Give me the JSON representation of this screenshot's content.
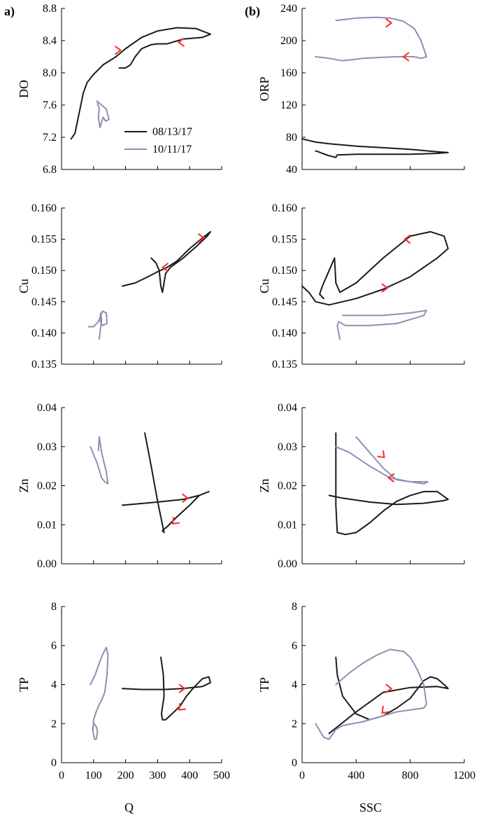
{
  "panel_labels": {
    "left": "a)",
    "right": "(b)"
  },
  "series_colors": {
    "08/13/17": "#1a1a1a",
    "10/11/17": "#8f8fb3",
    "arrow": "#ff2a2a"
  },
  "legend": [
    {
      "name": "08/13/17",
      "color": "#1a1a1a"
    },
    {
      "name": "10/11/17",
      "color": "#8f8fb3"
    }
  ],
  "chart_data": [
    {
      "type": "line",
      "panel": "a-DO",
      "xlabel": "",
      "ylabel": "DO",
      "xlim": [
        0,
        500
      ],
      "ylim": [
        6.8,
        8.8
      ],
      "xticks": [],
      "yticks": [
        "6.8",
        "7.2",
        "7.6",
        "8.0",
        "8.4",
        "8.8"
      ],
      "series": [
        {
          "name": "08/13/17",
          "x": [
            30,
            42,
            55,
            68,
            80,
            100,
            130,
            170,
            200,
            250,
            300,
            360,
            420,
            465,
            440,
            380,
            330,
            300,
            280,
            250,
            230,
            215,
            200,
            180
          ],
          "y": [
            7.18,
            7.25,
            7.5,
            7.75,
            7.88,
            7.98,
            8.1,
            8.2,
            8.3,
            8.44,
            8.52,
            8.56,
            8.55,
            8.48,
            8.44,
            8.42,
            8.36,
            8.36,
            8.35,
            8.3,
            8.2,
            8.1,
            8.06,
            8.06
          ]
        },
        {
          "name": "10/11/17",
          "x": [
            110,
            125,
            140,
            148,
            138,
            130,
            120,
            115,
            118,
            112
          ],
          "y": [
            7.65,
            7.6,
            7.55,
            7.42,
            7.4,
            7.45,
            7.32,
            7.45,
            7.56,
            7.62
          ]
        }
      ],
      "arrows": [
        {
          "x": 180,
          "y": 8.28,
          "dir": "right"
        },
        {
          "x": 370,
          "y": 8.38,
          "dir": "left"
        }
      ]
    },
    {
      "type": "line",
      "panel": "b-ORP",
      "xlabel": "",
      "ylabel": "ORP",
      "xlim": [
        0,
        1200
      ],
      "ylim": [
        40,
        240
      ],
      "xticks": [],
      "yticks": [
        "40",
        "80",
        "120",
        "160",
        "200",
        "240"
      ],
      "series": [
        {
          "name": "08/13/17",
          "x": [
            0,
            100,
            200,
            400,
            600,
            800,
            1000,
            1080,
            1000,
            800,
            600,
            400,
            260,
            250,
            200,
            150,
            120,
            100
          ],
          "y": [
            78,
            74,
            72,
            69,
            67,
            65,
            62,
            61,
            60,
            59,
            59,
            59,
            58,
            55,
            57,
            60,
            62,
            63
          ]
        },
        {
          "name": "10/11/17",
          "x": [
            250,
            400,
            550,
            650,
            750,
            830,
            880,
            920,
            880,
            830,
            700,
            550,
            450,
            300,
            200,
            100
          ],
          "y": [
            225,
            228,
            229,
            228,
            224,
            215,
            200,
            180,
            178,
            180,
            180,
            179,
            178,
            175,
            178,
            180
          ]
        }
      ],
      "arrows": [
        {
          "x": 650,
          "y": 222,
          "dir": "right"
        },
        {
          "x": 760,
          "y": 180,
          "dir": "left"
        }
      ]
    },
    {
      "type": "line",
      "panel": "a-Cu",
      "xlabel": "",
      "ylabel": "Cu",
      "xlim": [
        0,
        500
      ],
      "ylim": [
        0.135,
        0.16
      ],
      "xticks": [],
      "yticks": [
        "0.135",
        "0.140",
        "0.145",
        "0.150",
        "0.155",
        "0.160"
      ],
      "series": [
        {
          "name": "08/13/17",
          "x": [
            190,
            230,
            270,
            300,
            330,
            360,
            400,
            440,
            465,
            455,
            420,
            380,
            340,
            325,
            320,
            315,
            310,
            305,
            295,
            280
          ],
          "y": [
            0.1475,
            0.148,
            0.149,
            0.1498,
            0.1505,
            0.1515,
            0.1535,
            0.1552,
            0.1562,
            0.1555,
            0.1538,
            0.152,
            0.1505,
            0.1495,
            0.148,
            0.1465,
            0.1475,
            0.15,
            0.1512,
            0.152
          ]
        },
        {
          "name": "10/11/17",
          "x": [
            85,
            100,
            115,
            128,
            140,
            142,
            128,
            120,
            122,
            125,
            118
          ],
          "y": [
            0.141,
            0.141,
            0.1418,
            0.1435,
            0.1432,
            0.1415,
            0.1412,
            0.142,
            0.1432,
            0.1422,
            0.139
          ]
        }
      ],
      "arrows": [
        {
          "x": 320,
          "y": 0.1505,
          "dir": "left"
        },
        {
          "x": 440,
          "y": 0.1552,
          "dir": "right"
        }
      ]
    },
    {
      "type": "line",
      "panel": "b-Cu",
      "xlabel": "",
      "ylabel": "Cu",
      "xlim": [
        0,
        1200
      ],
      "ylim": [
        0.135,
        0.16
      ],
      "xticks": [],
      "yticks": [
        "0.135",
        "0.140",
        "0.145",
        "0.150",
        "0.155",
        "0.160"
      ],
      "series": [
        {
          "name": "08/13/17",
          "x": [
            0,
            50,
            100,
            200,
            400,
            600,
            800,
            1000,
            1080,
            1050,
            950,
            800,
            600,
            400,
            280,
            250,
            240,
            200,
            150,
            130,
            160
          ],
          "y": [
            0.1475,
            0.1465,
            0.145,
            0.1445,
            0.1455,
            0.147,
            0.149,
            0.152,
            0.1535,
            0.1555,
            0.1562,
            0.1555,
            0.152,
            0.148,
            0.1465,
            0.148,
            0.152,
            0.15,
            0.1475,
            0.1462,
            0.1455
          ]
        },
        {
          "name": "10/11/17",
          "x": [
            300,
            400,
            600,
            800,
            920,
            900,
            700,
            500,
            320,
            270,
            260,
            280
          ],
          "y": [
            0.1428,
            0.1428,
            0.1428,
            0.1432,
            0.1436,
            0.1428,
            0.1415,
            0.1412,
            0.1412,
            0.1418,
            0.1412,
            0.139
          ]
        }
      ],
      "arrows": [
        {
          "x": 770,
          "y": 0.155,
          "dir": "left"
        },
        {
          "x": 620,
          "y": 0.1472,
          "dir": "right"
        }
      ]
    },
    {
      "type": "line",
      "panel": "a-Zn",
      "xlabel": "",
      "ylabel": "Zn",
      "xlim": [
        0,
        500
      ],
      "ylim": [
        0.0,
        0.04
      ],
      "xticks": [],
      "yticks": [
        "0.00",
        "0.01",
        "0.02",
        "0.03",
        "0.04"
      ],
      "series": [
        {
          "name": "08/13/17",
          "x": [
            260,
            280,
            300,
            315,
            320,
            315,
            330,
            360,
            400,
            430,
            460,
            430,
            380,
            300,
            190
          ],
          "y": [
            0.0335,
            0.025,
            0.016,
            0.01,
            0.008,
            0.0085,
            0.0095,
            0.012,
            0.015,
            0.0175,
            0.0185,
            0.0175,
            0.0165,
            0.0158,
            0.015
          ]
        },
        {
          "name": "10/11/17",
          "x": [
            90,
            110,
            125,
            135,
            145,
            140,
            125,
            118,
            115
          ],
          "y": [
            0.03,
            0.026,
            0.022,
            0.021,
            0.0205,
            0.0235,
            0.0285,
            0.0325,
            0.029
          ]
        }
      ],
      "arrows": [
        {
          "x": 390,
          "y": 0.0168,
          "dir": "right"
        },
        {
          "x": 350,
          "y": 0.0105,
          "dir": "down-left"
        }
      ]
    },
    {
      "type": "line",
      "panel": "b-Zn",
      "xlabel": "",
      "ylabel": "Zn",
      "xlim": [
        0,
        1200
      ],
      "ylim": [
        0.0,
        0.04
      ],
      "xticks": [],
      "yticks": [
        "0.00",
        "0.01",
        "0.02",
        "0.03",
        "0.04"
      ],
      "series": [
        {
          "name": "08/13/17",
          "x": [
            250,
            250,
            260,
            320,
            400,
            500,
            600,
            700,
            800,
            900,
            1000,
            1080,
            1050,
            900,
            700,
            500,
            300,
            200
          ],
          "y": [
            0.0335,
            0.015,
            0.008,
            0.0075,
            0.008,
            0.0105,
            0.0135,
            0.016,
            0.0175,
            0.0185,
            0.0185,
            0.0165,
            0.0162,
            0.0155,
            0.0152,
            0.0158,
            0.0168,
            0.0175
          ]
        },
        {
          "name": "10/11/17",
          "x": [
            250,
            350,
            500,
            650,
            800,
            900,
            930,
            800,
            700,
            600,
            500,
            400
          ],
          "y": [
            0.03,
            0.0285,
            0.025,
            0.022,
            0.021,
            0.0205,
            0.021,
            0.021,
            0.0215,
            0.0245,
            0.0285,
            0.0325
          ]
        }
      ],
      "arrows": [
        {
          "x": 600,
          "y": 0.0275,
          "dir": "down-right"
        },
        {
          "x": 650,
          "y": 0.022,
          "dir": "left"
        }
      ]
    },
    {
      "type": "line",
      "panel": "a-TP",
      "xlabel": "Q",
      "ylabel": "TP",
      "xlim": [
        0,
        500
      ],
      "ylim": [
        0,
        8
      ],
      "xticks": [
        "0",
        "100",
        "200",
        "300",
        "400",
        "500"
      ],
      "yticks": [
        "0",
        "2",
        "4",
        "6",
        "8"
      ],
      "series": [
        {
          "name": "08/13/17",
          "x": [
            310,
            318,
            320,
            312,
            315,
            325,
            345,
            370,
            390,
            410,
            440,
            460,
            465,
            440,
            380,
            320,
            250,
            190
          ],
          "y": [
            5.4,
            4.5,
            3.4,
            2.5,
            2.2,
            2.2,
            2.5,
            2.9,
            3.4,
            3.8,
            4.3,
            4.4,
            4.1,
            3.9,
            3.8,
            3.75,
            3.75,
            3.8
          ]
        },
        {
          "name": "10/11/17",
          "x": [
            90,
            105,
            118,
            130,
            140,
            145,
            142,
            135,
            125,
            118,
            108,
            100,
            98,
            103,
            108,
            112,
            110,
            102,
            100,
            97
          ],
          "y": [
            4.0,
            4.5,
            5.1,
            5.6,
            5.9,
            5.5,
            4.5,
            3.6,
            3.2,
            3.0,
            2.6,
            2.2,
            1.6,
            1.2,
            1.2,
            1.5,
            1.8,
            2.0,
            2.0,
            1.7
          ]
        }
      ],
      "arrows": [
        {
          "x": 380,
          "y": 3.8,
          "dir": "right"
        },
        {
          "x": 370,
          "y": 2.75,
          "dir": "down-left"
        }
      ]
    },
    {
      "type": "line",
      "panel": "b-TP",
      "xlabel": "SSC",
      "ylabel": "TP",
      "xlim": [
        0,
        1200
      ],
      "ylim": [
        0,
        8
      ],
      "xticks": [
        "0",
        "400",
        "800",
        "1200"
      ],
      "yticks": [
        "0",
        "2",
        "4",
        "6",
        "8"
      ],
      "series": [
        {
          "name": "08/13/17",
          "x": [
            250,
            260,
            300,
            400,
            500,
            600,
            700,
            800,
            900,
            950,
            1000,
            1050,
            1080,
            1000,
            800,
            600,
            400,
            200
          ],
          "y": [
            5.4,
            4.5,
            3.4,
            2.5,
            2.2,
            2.4,
            2.8,
            3.3,
            4.2,
            4.4,
            4.3,
            4.0,
            3.8,
            3.9,
            3.85,
            3.6,
            2.6,
            1.5
          ]
        },
        {
          "name": "10/11/17",
          "x": [
            250,
            350,
            450,
            550,
            650,
            750,
            800,
            850,
            900,
            920,
            900,
            800,
            700,
            600,
            450,
            300,
            250,
            200,
            160,
            100
          ],
          "y": [
            4.0,
            4.6,
            5.1,
            5.5,
            5.8,
            5.7,
            5.4,
            4.8,
            4.0,
            3.0,
            2.8,
            2.7,
            2.6,
            2.4,
            2.1,
            1.9,
            1.7,
            1.2,
            1.3,
            2.0
          ]
        }
      ],
      "arrows": [
        {
          "x": 650,
          "y": 3.8,
          "dir": "right"
        },
        {
          "x": 600,
          "y": 2.6,
          "dir": "down-left"
        }
      ]
    }
  ]
}
